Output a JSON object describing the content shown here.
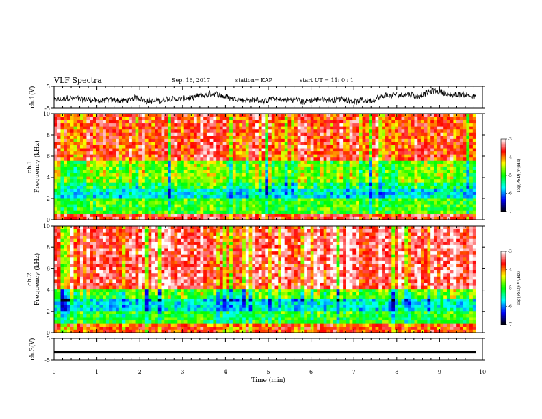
{
  "header": {
    "title": "VLF Spectra",
    "date": "Sep. 16, 2017",
    "station": "station= KAP",
    "start": "start UT =   11: 0  : 1"
  },
  "chart_data": [
    {
      "type": "line",
      "panel": "ch1-waveform",
      "ylabel": "ch.1(V)",
      "ylim": [
        -5,
        5
      ],
      "yticks": [
        5,
        -5
      ],
      "xlim": [
        0,
        10
      ],
      "data_span": [
        0,
        9.85
      ],
      "color": "#000000"
    },
    {
      "type": "heatmap",
      "panel": "ch1-spectrogram",
      "ylabel_top": "ch.1",
      "ylabel": "Frequency (kHz)",
      "ylim": [
        0,
        10
      ],
      "yticks": [
        0,
        2,
        4,
        6,
        8,
        10
      ],
      "xlim": [
        0,
        10
      ],
      "data_span": [
        0,
        9.85
      ],
      "colorbar": {
        "label": "log(PSD)(V²/Hz)",
        "range": [
          -7,
          -3
        ],
        "ticks": [
          -3,
          -4,
          -5,
          -6,
          -7
        ],
        "colormap": [
          "#000000",
          "#0000ff",
          "#00ffff",
          "#00ff00",
          "#ffff00",
          "#ff0000",
          "#ffffff"
        ]
      },
      "bands": [
        {
          "f": [
            0.0,
            0.6
          ],
          "logpsd": -3.6
        },
        {
          "f": [
            0.6,
            2.2
          ],
          "logpsd": -4.9
        },
        {
          "f": [
            2.2,
            2.9
          ],
          "logpsd": -5.6
        },
        {
          "f": [
            2.9,
            3.6
          ],
          "logpsd": -5.1
        },
        {
          "f": [
            3.6,
            5.5
          ],
          "logpsd": -4.7
        },
        {
          "f": [
            5.5,
            10.0
          ],
          "logpsd": -3.7
        }
      ]
    },
    {
      "type": "heatmap",
      "panel": "ch2-spectrogram",
      "ylabel_top": "ch.2",
      "ylabel": "Frequency (kHz)",
      "ylim": [
        0,
        10
      ],
      "yticks": [
        0,
        2,
        4,
        6,
        8,
        10
      ],
      "xlim": [
        0,
        10
      ],
      "data_span": [
        0,
        9.85
      ],
      "colorbar": {
        "label": "log(PSD)(V²/Hz)",
        "range": [
          -7,
          -3
        ],
        "ticks": [
          -3,
          -4,
          -5,
          -6,
          -7
        ],
        "colormap": [
          "#000000",
          "#0000ff",
          "#00ffff",
          "#00ff00",
          "#ffff00",
          "#ff0000",
          "#ffffff"
        ]
      },
      "bands": [
        {
          "f": [
            0.0,
            0.8
          ],
          "logpsd": -3.8
        },
        {
          "f": [
            0.8,
            2.2
          ],
          "logpsd": -5.0
        },
        {
          "f": [
            2.2,
            3.1
          ],
          "logpsd": -5.6
        },
        {
          "f": [
            3.1,
            4.2
          ],
          "logpsd": -4.8
        },
        {
          "f": [
            4.2,
            10.0
          ],
          "logpsd": -3.4
        }
      ]
    },
    {
      "type": "line",
      "panel": "ch3-waveform",
      "ylabel": "ch.3(V)",
      "ylim": [
        -5,
        5
      ],
      "yticks": [
        5,
        -5
      ],
      "xlim": [
        0,
        10
      ],
      "xticks": [
        0,
        1,
        2,
        3,
        4,
        5,
        6,
        7,
        8,
        9,
        10
      ],
      "xlabel": "Time  (min)",
      "data_span": [
        0,
        9.85
      ],
      "constant_value": -1.3,
      "color": "#000000"
    }
  ]
}
